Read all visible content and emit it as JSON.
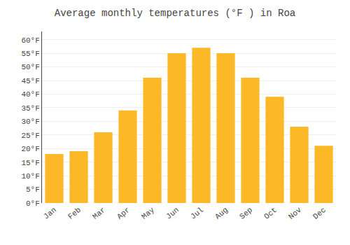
{
  "chart_data": {
    "type": "bar",
    "title": "Average monthly temperatures (°F ) in Roa",
    "categories": [
      "Jan",
      "Feb",
      "Mar",
      "Apr",
      "May",
      "Jun",
      "Jul",
      "Aug",
      "Sep",
      "Oct",
      "Nov",
      "Dec"
    ],
    "values": [
      18,
      19,
      26,
      34,
      46,
      55,
      57,
      55,
      46,
      39,
      28,
      21
    ],
    "color": "#FDB827",
    "ylim": [
      0,
      63
    ],
    "yticks": [
      {
        "value": 0,
        "label": "0°F"
      },
      {
        "value": 5,
        "label": "5°F"
      },
      {
        "value": 10,
        "label": "10°F"
      },
      {
        "value": 15,
        "label": "15°F"
      },
      {
        "value": 20,
        "label": "20°F"
      },
      {
        "value": 25,
        "label": "25°F"
      },
      {
        "value": 30,
        "label": "30°F"
      },
      {
        "value": 35,
        "label": "35°F"
      },
      {
        "value": 40,
        "label": "40°F"
      },
      {
        "value": 45,
        "label": "45°F"
      },
      {
        "value": 50,
        "label": "50°F"
      },
      {
        "value": 55,
        "label": "55°F"
      },
      {
        "value": 60,
        "label": "60°F"
      }
    ],
    "grid": true
  }
}
